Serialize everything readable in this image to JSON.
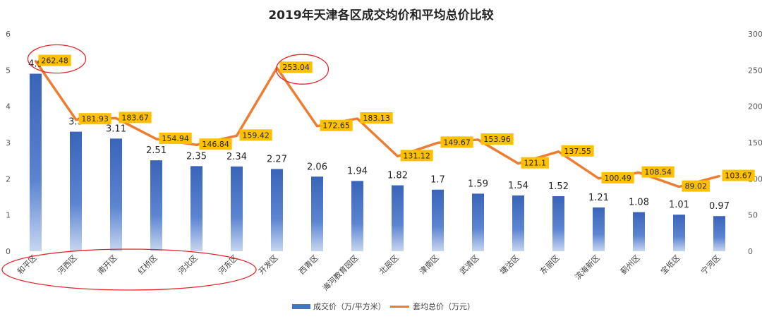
{
  "chart_data": {
    "type": "bar+line",
    "title": "2019年天津各区成交均价和平均总价比较",
    "categories": [
      "和平区",
      "河西区",
      "南开区",
      "红桥区",
      "河北区",
      "河东区",
      "开发区",
      "西青区",
      "海河教育园区",
      "北辰区",
      "津南区",
      "武清区",
      "塘沽区",
      "东丽区",
      "滨海新区",
      "蓟州区",
      "宝坻区",
      "宁河区"
    ],
    "bar_series": {
      "name": "成交价（万/平方米）",
      "values": [
        4.9,
        3.3,
        3.11,
        2.51,
        2.35,
        2.34,
        2.27,
        2.06,
        1.94,
        1.82,
        1.7,
        1.59,
        1.54,
        1.52,
        1.21,
        1.08,
        1.01,
        0.97
      ],
      "labels": [
        "4.9",
        "3.3",
        "3.11",
        "2.51",
        "2.35",
        "2.34",
        "2.27",
        "2.06",
        "1.94",
        "1.82",
        "1.7",
        "1.59",
        "1.54",
        "1.52",
        "1.21",
        "1.08",
        "1.01",
        "0.97"
      ],
      "color": "#4472C4",
      "axis": "left"
    },
    "line_series": {
      "name": "套均总价（万元）",
      "values": [
        262.48,
        181.93,
        183.67,
        154.94,
        146.84,
        159.42,
        253.04,
        172.65,
        183.13,
        131.12,
        149.67,
        153.96,
        121.1,
        137.55,
        100.49,
        108.54,
        89.02,
        103.67
      ],
      "labels": [
        "262.48",
        "181.93",
        "183.67",
        "154.94",
        "146.84",
        "159.42",
        "253.04",
        "172.65",
        "183.13",
        "131.12",
        "149.67",
        "153.96",
        "121.1",
        "137.55",
        "100.49",
        "108.54",
        "89.02",
        "103.67"
      ],
      "color": "#ED7D31",
      "label_box_color": "#FFC000",
      "axis": "right"
    },
    "y_left": {
      "lim": [
        0,
        6
      ],
      "ticks": [
        "0",
        "1",
        "2",
        "3",
        "4",
        "5",
        "6"
      ]
    },
    "y_right": {
      "lim": [
        0,
        300
      ],
      "ticks": [
        "0",
        "50",
        "100",
        "150",
        "200",
        "250",
        "300"
      ]
    },
    "grid": false,
    "legend": "bottom",
    "annotations": {
      "color": "#E0282E",
      "circled_line_points": [
        "和平区",
        "开发区"
      ],
      "circled_categories": [
        "和平区",
        "河西区",
        "南开区",
        "红桥区",
        "河北区",
        "河东区"
      ]
    }
  }
}
